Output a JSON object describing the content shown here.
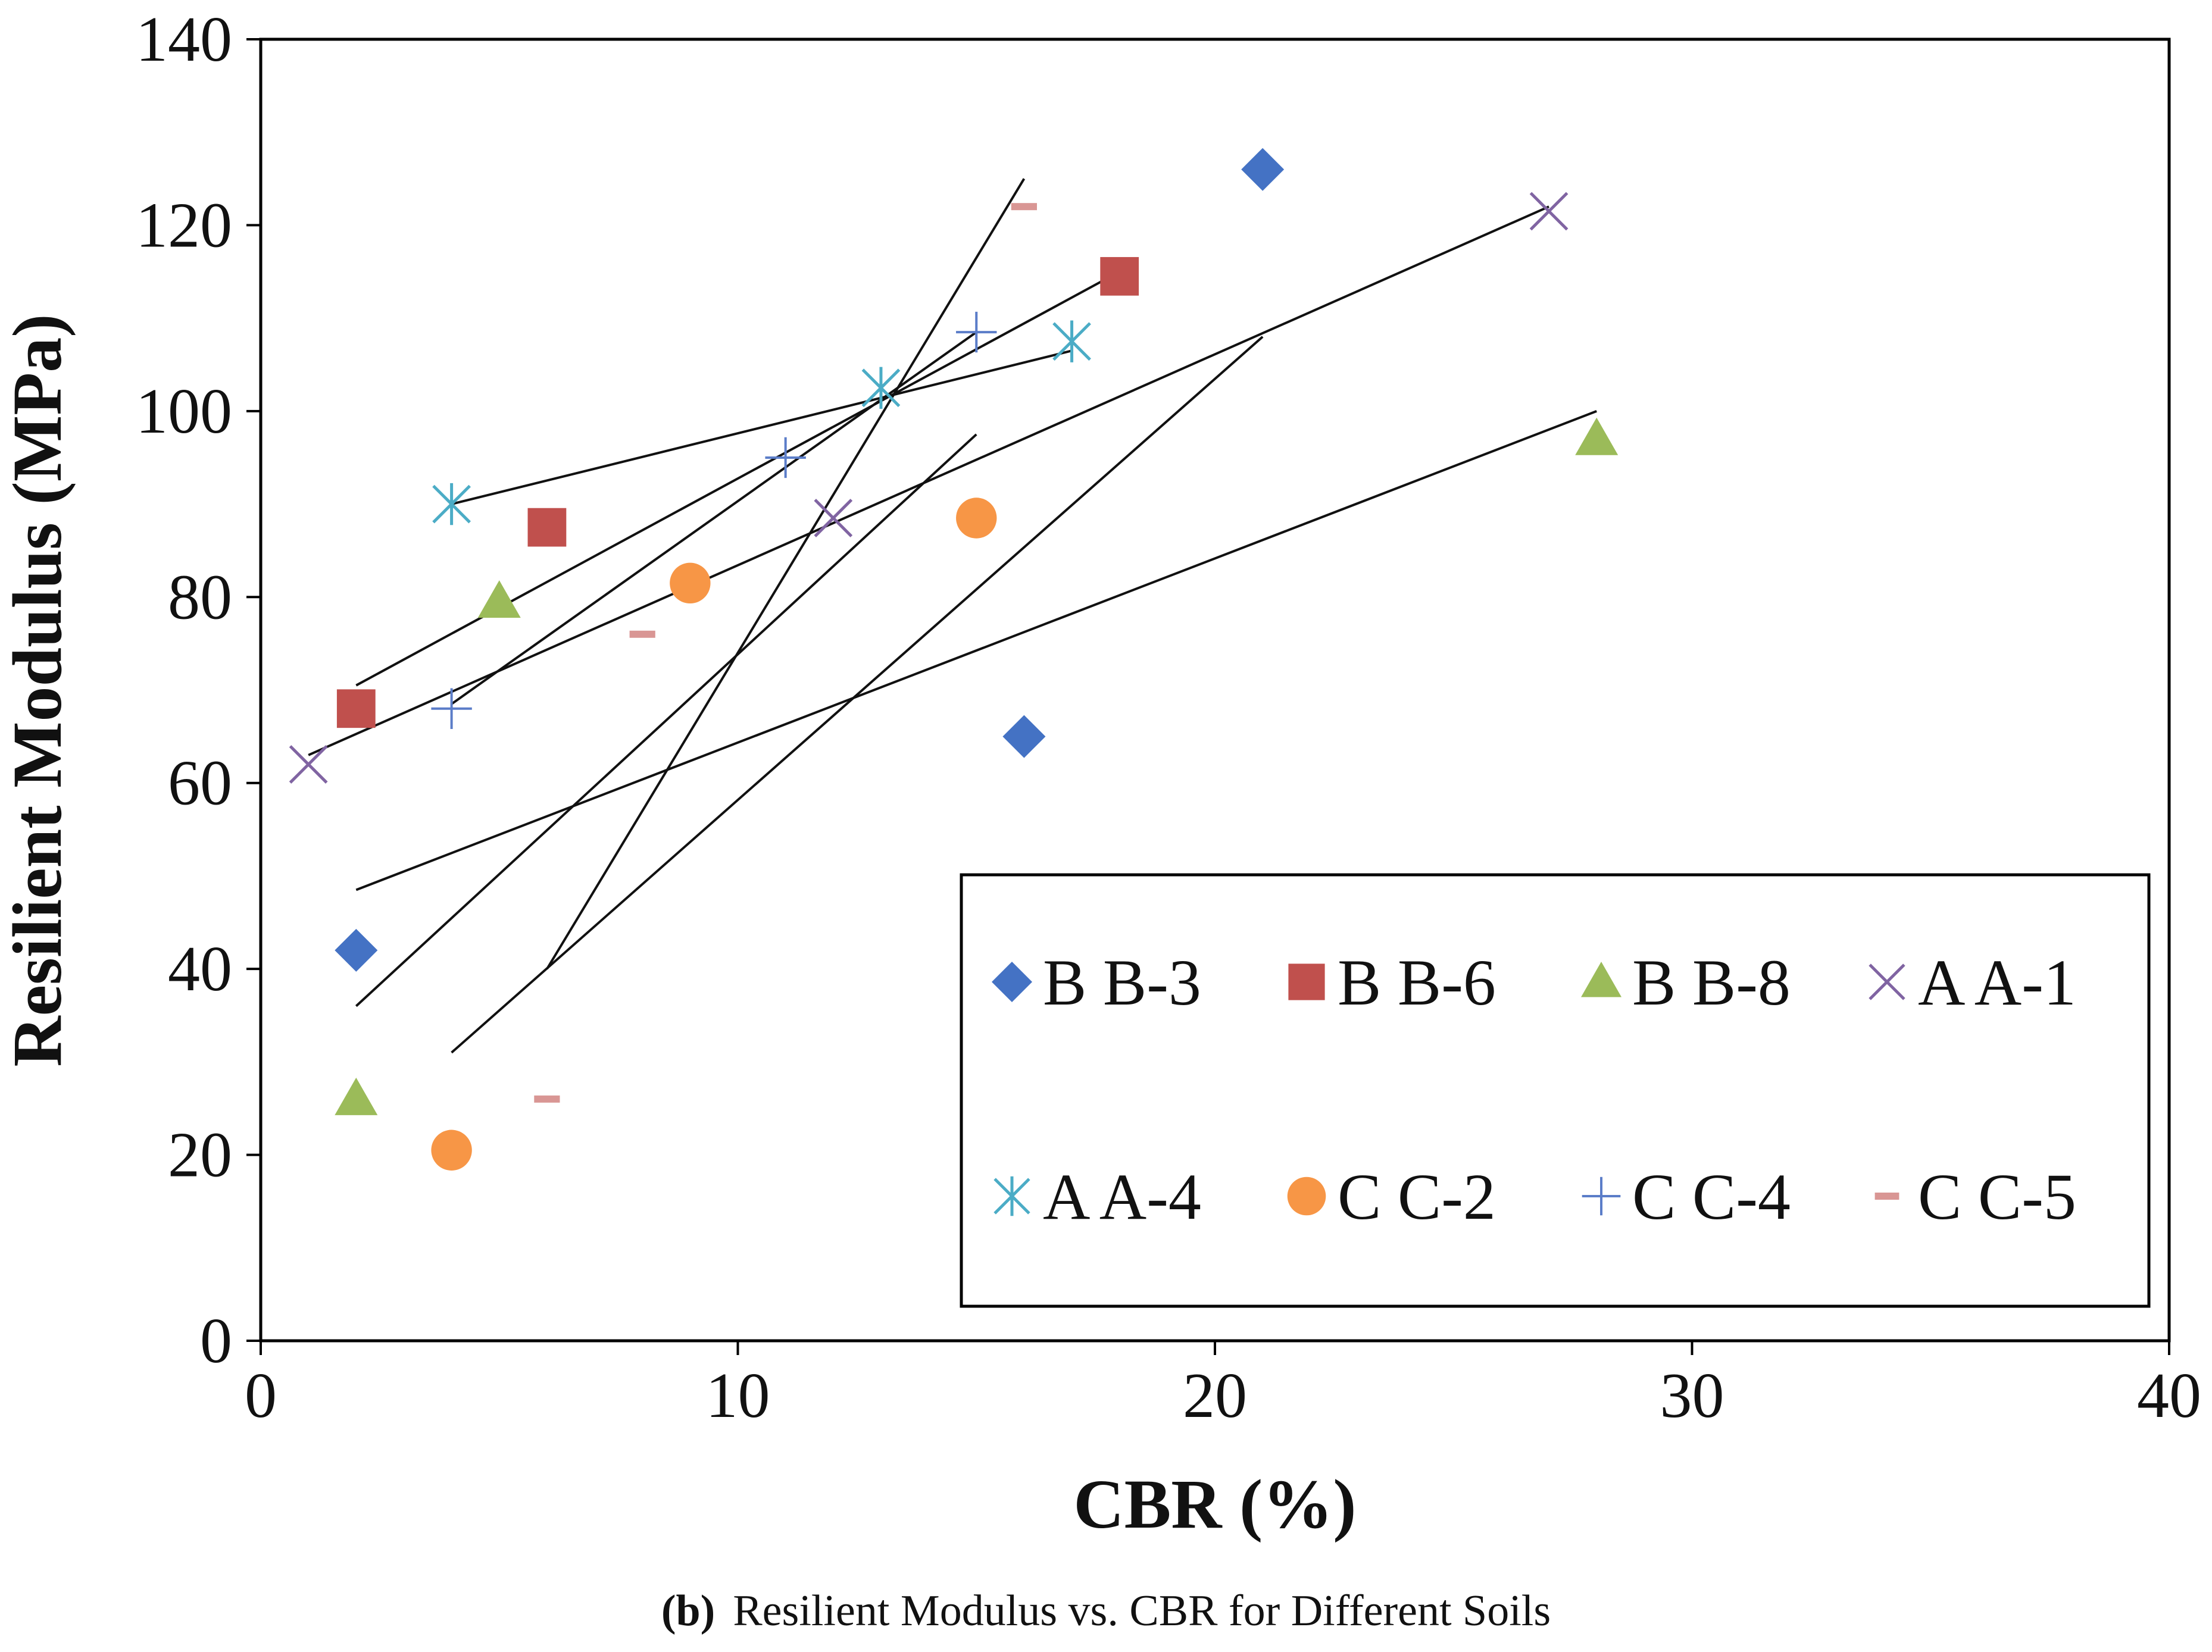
{
  "chart_data": {
    "type": "scatter",
    "xlabel": "CBR (%)",
    "ylabel": "Resilient Modulus (MPa)",
    "xlim": [
      0,
      40
    ],
    "ylim": [
      0,
      140
    ],
    "xticks": [
      0,
      10,
      20,
      30,
      40
    ],
    "yticks": [
      0,
      20,
      40,
      60,
      80,
      100,
      120,
      140
    ],
    "grid": false,
    "legend_position": "bottom-right",
    "series": [
      {
        "name": "B B-3",
        "marker": "diamond",
        "color": "#4472C4",
        "points": [
          [
            2,
            42
          ],
          [
            16,
            65
          ],
          [
            21,
            126
          ]
        ],
        "trend": [
          [
            6,
            40
          ],
          [
            16,
            125
          ]
        ]
      },
      {
        "name": "B B-6",
        "marker": "square",
        "color": "#C0504D",
        "points": [
          [
            2,
            68
          ],
          [
            6,
            87.5
          ],
          [
            18,
            114.5
          ]
        ],
        "trend": [
          [
            2,
            70.5
          ],
          [
            18,
            115
          ]
        ]
      },
      {
        "name": "B B-8",
        "marker": "triangle",
        "color": "#9BBB59",
        "points": [
          [
            2,
            26
          ],
          [
            5,
            79.5
          ],
          [
            28,
            97
          ]
        ],
        "trend": [
          [
            2,
            48.5
          ],
          [
            28,
            100
          ]
        ]
      },
      {
        "name": "A A-1",
        "marker": "x",
        "color": "#8064A2",
        "points": [
          [
            1,
            62
          ],
          [
            12,
            88.5
          ],
          [
            27,
            121.5
          ]
        ],
        "trend": [
          [
            1,
            63
          ],
          [
            27,
            122
          ]
        ]
      },
      {
        "name": "A A-4",
        "marker": "asterisk",
        "color": "#4BACC6",
        "points": [
          [
            4,
            90
          ],
          [
            13,
            102.5
          ],
          [
            17,
            107.5
          ]
        ],
        "trend": [
          [
            4,
            90
          ],
          [
            17,
            106.5
          ]
        ]
      },
      {
        "name": "C C-2",
        "marker": "circle",
        "color": "#F79646",
        "points": [
          [
            4,
            20.5
          ],
          [
            9,
            81.5
          ],
          [
            15,
            88.5
          ]
        ],
        "trend": [
          [
            2,
            36
          ],
          [
            15,
            97.5
          ]
        ]
      },
      {
        "name": "C C-4",
        "marker": "plus",
        "color": "#5B7DC8",
        "points": [
          [
            4,
            68
          ],
          [
            11,
            95
          ],
          [
            15,
            108.5
          ]
        ],
        "trend": [
          [
            4,
            68.5
          ],
          [
            15,
            108.5
          ]
        ]
      },
      {
        "name": "C C-5",
        "marker": "dash",
        "color": "#D99694",
        "points": [
          [
            6,
            26
          ],
          [
            8,
            76
          ],
          [
            16,
            122
          ]
        ],
        "trend": [
          [
            4,
            31
          ],
          [
            21,
            108
          ]
        ]
      }
    ]
  },
  "caption": {
    "label": "(b)",
    "text": "Resilient Modulus vs. CBR for Different Soils"
  }
}
